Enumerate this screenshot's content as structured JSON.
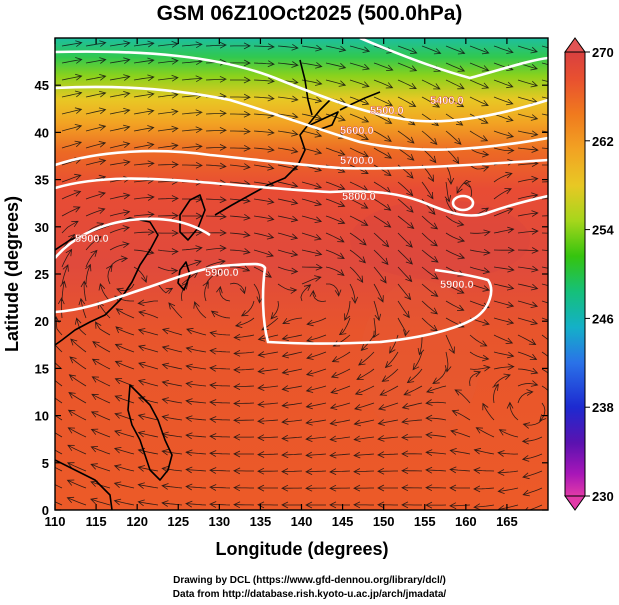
{
  "title": "GSM 06Z10Oct2025 (500.0hPa)",
  "x_axis": {
    "label": "Longitude (degrees)",
    "range": [
      110,
      170
    ],
    "ticks": [
      110,
      115,
      120,
      125,
      130,
      135,
      140,
      145,
      150,
      155,
      160,
      165
    ]
  },
  "y_axis": {
    "label": "Latitude  (degrees)",
    "range": [
      0,
      50
    ],
    "ticks": [
      0,
      5,
      10,
      15,
      20,
      25,
      30,
      35,
      40,
      45
    ]
  },
  "colorbar": {
    "range": [
      230,
      270
    ],
    "tick_labels": [
      "270",
      "262",
      "254",
      "246",
      "238",
      "230"
    ],
    "colors": [
      "#d94040",
      "#e85030",
      "#f07a1e",
      "#f2a323",
      "#e8c824",
      "#a6d61c",
      "#35c40e",
      "#15c07a",
      "#14b0c8",
      "#2a72e8",
      "#1d2ad0",
      "#5a12b0",
      "#a816b8",
      "#e23aa8"
    ]
  },
  "contours": {
    "labels": [
      "5400.0",
      "5500.0",
      "5600.0",
      "5700.0",
      "5800.0",
      "5900.0",
      "5900.0",
      "5900.0"
    ]
  },
  "footer": {
    "line1": "Drawing by DCL (https://www.gfd-dennou.org/library/dcl/)",
    "line2": "Data from http://database.rish.kyoto-u.ac.jp/arch/jmadata/"
  },
  "colors": {
    "arrow": "#111111",
    "contour": "#ffffff",
    "coast": "#000000"
  }
}
